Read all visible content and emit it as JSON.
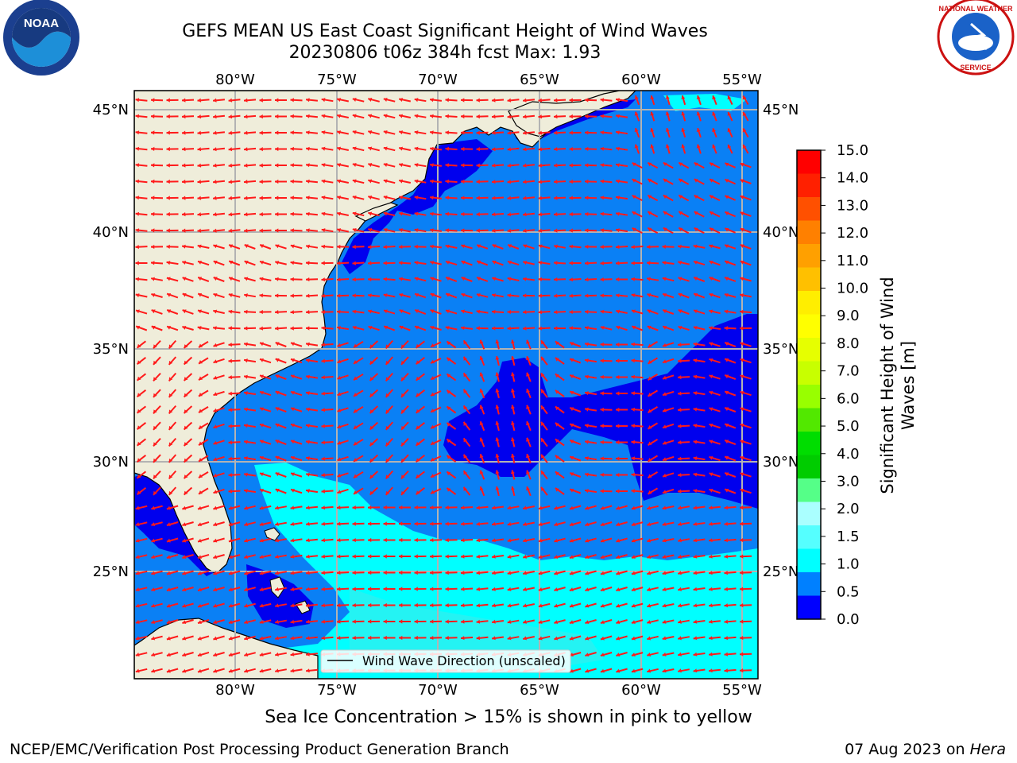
{
  "header": {
    "title_line1": "GEFS MEAN US East Coast Significant Height of Wind Waves",
    "title_line2": "20230806 t06z 384h fcst   Max: 1.93"
  },
  "logos": {
    "noaa": {
      "text": "NOAA",
      "icon": "noaa-logo"
    },
    "nws": {
      "text": "NATIONAL WEATHER SERVICE",
      "icon": "nws-logo"
    }
  },
  "map": {
    "lon_ticks": [
      "80°W",
      "75°W",
      "70°W",
      "65°W",
      "60°W",
      "55°W"
    ],
    "lat_ticks": [
      "45°N",
      "40°N",
      "35°N",
      "30°N",
      "25°N"
    ],
    "legend_label": "Wind Wave Direction (unscaled)",
    "land_color": "#efedda",
    "arrow_color": "#ff1a1a"
  },
  "colorbar": {
    "label_line1": "Significant Height of Wind",
    "label_line2": "Waves [m]",
    "ticks": [
      "15.0",
      "14.0",
      "13.0",
      "12.0",
      "11.0",
      "10.0",
      "9.0",
      "8.0",
      "7.0",
      "6.0",
      "5.0",
      "4.0",
      "3.0",
      "2.0",
      "1.5",
      "1.0",
      "0.5",
      "0.0"
    ],
    "colors_top_to_bottom": [
      "#ff0000",
      "#ff2000",
      "#ff5000",
      "#ff8000",
      "#ffa000",
      "#ffc000",
      "#ffee00",
      "#ffff00",
      "#e6ff00",
      "#c8ff00",
      "#98ff00",
      "#52e800",
      "#00dd00",
      "#00cc00",
      "#55ff88",
      "#aaffff",
      "#55ffff",
      "#00ffff",
      "#0080ff",
      "#0000ff"
    ]
  },
  "caption": "Sea Ice Concentration > 15% is shown in pink to yellow",
  "footer": {
    "left": "NCEP/EMC/Verification Post Processing Product Generation Branch",
    "right_prefix": "07 Aug 2023 on ",
    "right_host": "Hera"
  }
}
